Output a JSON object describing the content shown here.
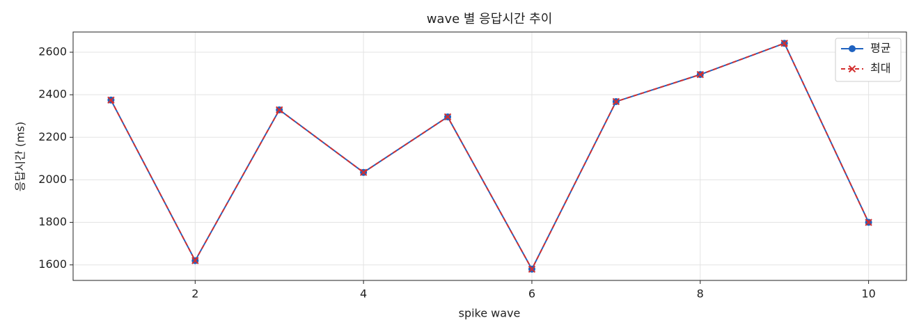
{
  "chart_data": {
    "type": "line",
    "title": "wave 별 응답시간 추이",
    "x_label": "spike wave",
    "y_label": "응답시간 (ms)",
    "x": [
      1,
      2,
      3,
      4,
      5,
      6,
      7,
      8,
      9,
      10
    ],
    "series": [
      {
        "name": "평균",
        "color": "#1f62c0",
        "marker": "circle",
        "dash": "solid",
        "values": [
          2375,
          1620,
          2329,
          2035,
          2296,
          1580,
          2368,
          2495,
          2642,
          1800
        ]
      },
      {
        "name": "최대",
        "color": "#d32f2f",
        "marker": "x",
        "dash": "dashed",
        "values": [
          2375,
          1620,
          2329,
          2035,
          2296,
          1580,
          2368,
          2495,
          2642,
          1800
        ]
      }
    ],
    "xlim": [
      0.55,
      10.45
    ],
    "ylim": [
      1527,
      2695
    ],
    "xticks": [
      2,
      4,
      6,
      8,
      10
    ],
    "yticks": [
      1600,
      1800,
      2000,
      2200,
      2400,
      2600
    ],
    "grid": true,
    "legend": "upper right"
  }
}
